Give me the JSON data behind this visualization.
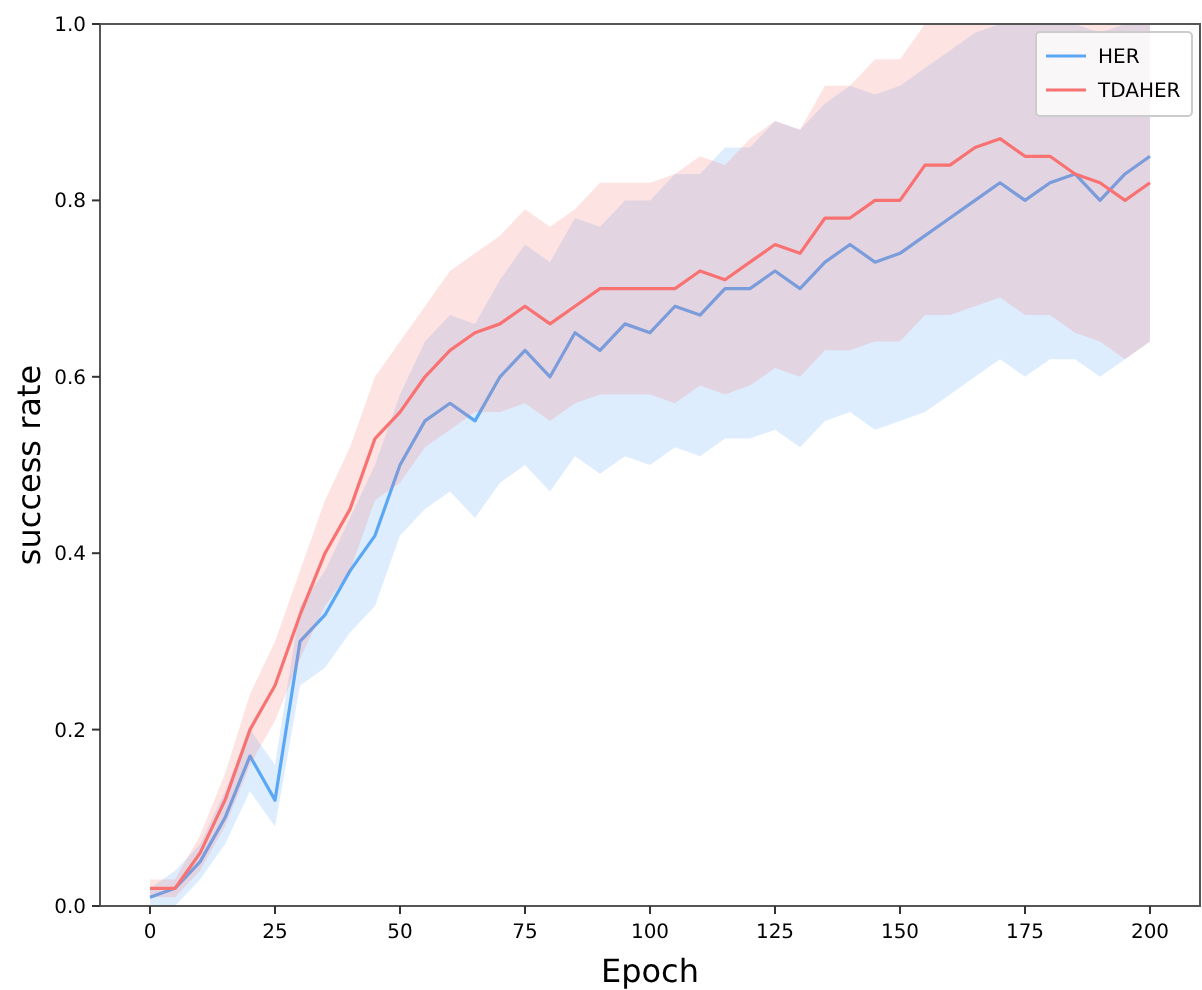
{
  "chart_data": {
    "type": "line",
    "xlabel": "Epoch",
    "ylabel": "success rate",
    "x": [
      0,
      5,
      10,
      15,
      20,
      25,
      30,
      35,
      40,
      45,
      50,
      55,
      60,
      65,
      70,
      75,
      80,
      85,
      90,
      95,
      100,
      105,
      110,
      115,
      120,
      125,
      130,
      135,
      140,
      145,
      150,
      155,
      160,
      165,
      170,
      175,
      180,
      185,
      190,
      195,
      200
    ],
    "series": [
      {
        "name": "HER",
        "color": "#5aa7f5",
        "values": [
          0.01,
          0.02,
          0.05,
          0.1,
          0.17,
          0.12,
          0.3,
          0.33,
          0.38,
          0.42,
          0.5,
          0.55,
          0.57,
          0.55,
          0.6,
          0.63,
          0.6,
          0.65,
          0.63,
          0.66,
          0.65,
          0.68,
          0.67,
          0.7,
          0.7,
          0.72,
          0.7,
          0.73,
          0.75,
          0.73,
          0.74,
          0.76,
          0.78,
          0.8,
          0.82,
          0.8,
          0.82,
          0.83,
          0.8,
          0.83,
          0.85
        ],
        "lower": [
          0,
          0,
          0.03,
          0.07,
          0.13,
          0.09,
          0.25,
          0.27,
          0.31,
          0.34,
          0.42,
          0.45,
          0.47,
          0.44,
          0.48,
          0.5,
          0.47,
          0.51,
          0.49,
          0.51,
          0.5,
          0.52,
          0.51,
          0.53,
          0.53,
          0.54,
          0.52,
          0.55,
          0.56,
          0.54,
          0.55,
          0.56,
          0.58,
          0.6,
          0.62,
          0.6,
          0.62,
          0.62,
          0.6,
          0.62,
          0.64
        ],
        "upper": [
          0.02,
          0.04,
          0.07,
          0.13,
          0.2,
          0.16,
          0.34,
          0.38,
          0.44,
          0.5,
          0.58,
          0.64,
          0.67,
          0.66,
          0.71,
          0.75,
          0.73,
          0.78,
          0.77,
          0.8,
          0.8,
          0.83,
          0.83,
          0.86,
          0.86,
          0.89,
          0.88,
          0.91,
          0.93,
          0.92,
          0.93,
          0.95,
          0.97,
          0.99,
          1.0,
          1.0,
          1.0,
          1.0,
          0.99,
          1.0,
          1.0
        ]
      },
      {
        "name": "TDAHER",
        "color": "#f97272",
        "values": [
          0.02,
          0.02,
          0.06,
          0.12,
          0.2,
          0.25,
          0.33,
          0.4,
          0.45,
          0.53,
          0.56,
          0.6,
          0.63,
          0.65,
          0.66,
          0.68,
          0.66,
          0.68,
          0.7,
          0.7,
          0.7,
          0.7,
          0.72,
          0.71,
          0.73,
          0.75,
          0.74,
          0.78,
          0.78,
          0.8,
          0.8,
          0.84,
          0.84,
          0.86,
          0.87,
          0.85,
          0.85,
          0.83,
          0.82,
          0.8,
          0.82
        ],
        "lower": [
          0.01,
          0.01,
          0.04,
          0.09,
          0.16,
          0.21,
          0.28,
          0.34,
          0.38,
          0.46,
          0.48,
          0.52,
          0.54,
          0.56,
          0.56,
          0.57,
          0.55,
          0.57,
          0.58,
          0.58,
          0.58,
          0.57,
          0.59,
          0.58,
          0.59,
          0.61,
          0.6,
          0.63,
          0.63,
          0.64,
          0.64,
          0.67,
          0.67,
          0.68,
          0.69,
          0.67,
          0.67,
          0.65,
          0.64,
          0.62,
          0.64
        ],
        "upper": [
          0.03,
          0.03,
          0.08,
          0.15,
          0.24,
          0.3,
          0.38,
          0.46,
          0.52,
          0.6,
          0.64,
          0.68,
          0.72,
          0.74,
          0.76,
          0.79,
          0.77,
          0.79,
          0.82,
          0.82,
          0.82,
          0.83,
          0.85,
          0.84,
          0.87,
          0.89,
          0.88,
          0.93,
          0.93,
          0.96,
          0.96,
          1.0,
          1.0,
          1.0,
          1.0,
          1.0,
          1.0,
          1.0,
          1.0,
          1.0,
          1.0
        ]
      }
    ],
    "xlim": [
      -10,
      210
    ],
    "ylim": [
      0,
      1
    ],
    "xticks": [
      0,
      25,
      50,
      75,
      100,
      125,
      150,
      175,
      200
    ],
    "yticks": [
      {
        "value": 0,
        "label": "0.0"
      },
      {
        "value": 0.2,
        "label": "0.2"
      },
      {
        "value": 0.4,
        "label": "0.4"
      },
      {
        "value": 0.6,
        "label": "0.6"
      },
      {
        "value": 0.8,
        "label": "0.8"
      },
      {
        "value": 1,
        "label": "1.0"
      }
    ],
    "legend": "top right",
    "grid": false,
    "marker": "none",
    "line_style": "solid"
  }
}
